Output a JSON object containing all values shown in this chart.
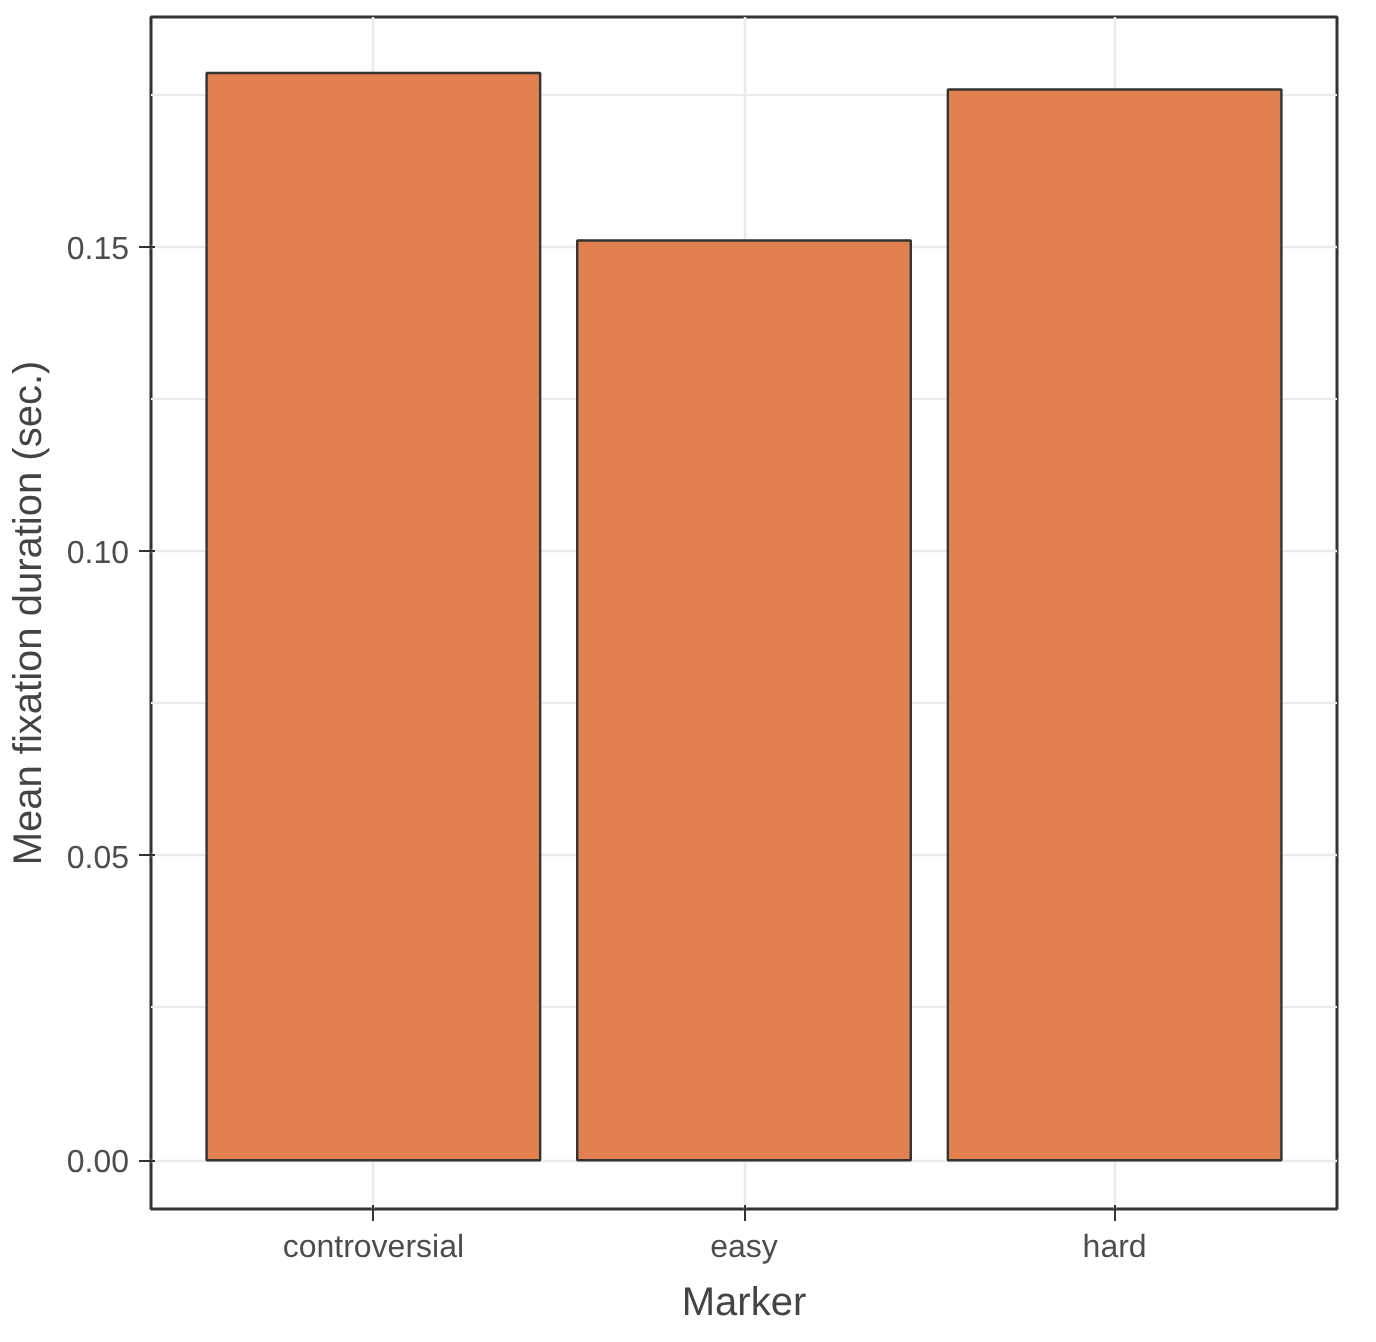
{
  "chart_data": {
    "type": "bar",
    "xlabel": "Marker",
    "ylabel": "Mean fixation duration (sec.)",
    "categories": [
      "controversial",
      "easy",
      "hard"
    ],
    "values": [
      0.1785,
      0.151,
      0.1758
    ],
    "color": "#e2804f",
    "ylim": [
      -0.008,
      0.1877
    ],
    "yticks": [
      {
        "value": 0,
        "label": "0.00"
      },
      {
        "value": 0.05,
        "label": "0.05"
      },
      {
        "value": 0.1,
        "label": "0.10"
      },
      {
        "value": 0.15,
        "label": "0.15"
      }
    ],
    "grid": true
  }
}
